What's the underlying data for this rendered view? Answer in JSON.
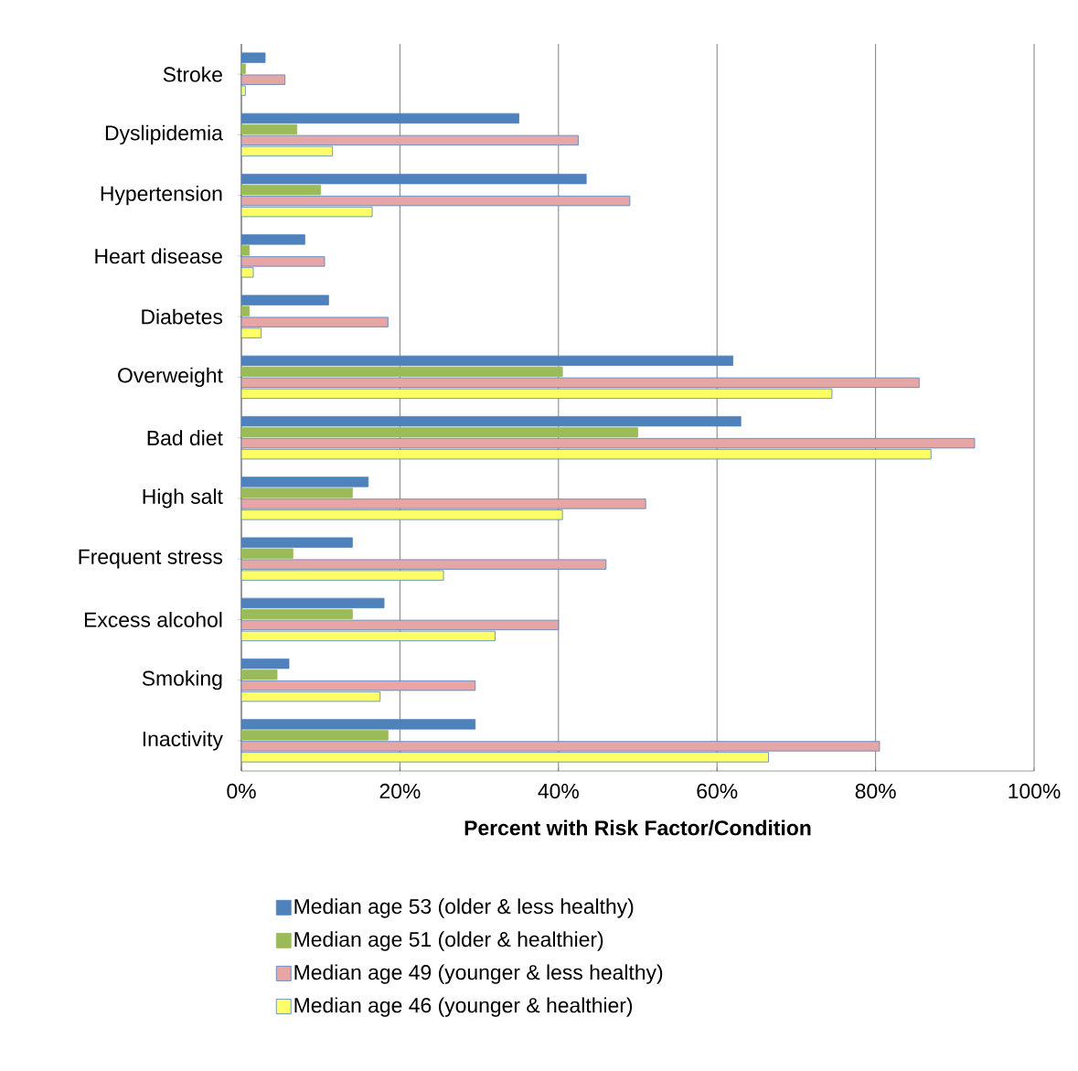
{
  "chart_data": {
    "type": "bar",
    "orientation": "horizontal",
    "xlabel": "Percent with Risk Factor/Condition",
    "categories": [
      "Stroke",
      "Dyslipidemia",
      "Hypertension",
      "Heart disease",
      "Diabetes",
      "Overweight",
      "Bad diet",
      "High salt",
      "Frequent stress",
      "Excess alcohol",
      "Smoking",
      "Inactivity"
    ],
    "series": [
      {
        "name": "Median age 53 (older & less healthy)",
        "color": "#4f81bd",
        "values": [
          3,
          35,
          43.5,
          8,
          11,
          62,
          63,
          16,
          14,
          18,
          6,
          29.5
        ]
      },
      {
        "name": "Median age 51 (older & healthier)",
        "color": "#9bbb59",
        "values": [
          0.5,
          7,
          10,
          1,
          1,
          40.5,
          50,
          14,
          6.5,
          14,
          4.5,
          18.5
        ]
      },
      {
        "name": "Median age 49 (younger & less healthy)",
        "color": "#e6a6a6",
        "values": [
          5.5,
          42.5,
          49,
          10.5,
          18.5,
          85.5,
          92.5,
          51,
          46,
          40,
          29.5,
          80.5
        ]
      },
      {
        "name": "Median age 46 (younger & healthier)",
        "color": "#ffff66",
        "values": [
          0.5,
          11.5,
          16.5,
          1.5,
          2.5,
          74.5,
          87,
          40.5,
          25.5,
          32,
          17.5,
          66.5
        ]
      }
    ],
    "xlim": [
      0,
      100
    ],
    "xticks": [
      {
        "value": 0,
        "label": "0%"
      },
      {
        "value": 20,
        "label": "20%"
      },
      {
        "value": 40,
        "label": "40%"
      },
      {
        "value": 60,
        "label": "60%"
      },
      {
        "value": 80,
        "label": "80%"
      },
      {
        "value": 100,
        "label": "100%"
      }
    ],
    "grid": "x",
    "legend": "bottom"
  }
}
